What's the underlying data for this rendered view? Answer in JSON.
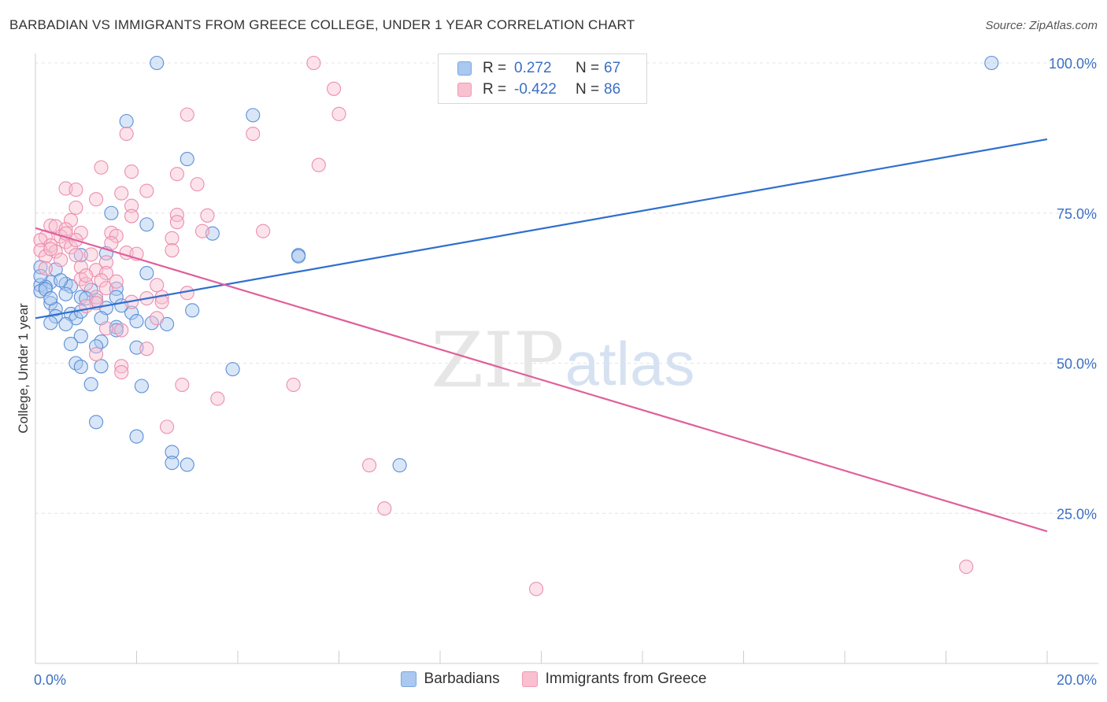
{
  "title": "BARBADIAN VS IMMIGRANTS FROM GREECE COLLEGE, UNDER 1 YEAR CORRELATION CHART",
  "source": "Source: ZipAtlas.com",
  "watermark": {
    "zip": "ZIP",
    "atlas": "atlas"
  },
  "legend_top": [
    {
      "r_label": "R =",
      "r_value": "0.272",
      "n_label": "N =",
      "n_value": "67",
      "color": "#aac8f0",
      "border": "#7aa6e0"
    },
    {
      "r_label": "R =",
      "r_value": "-0.422",
      "n_label": "N =",
      "n_value": "86",
      "color": "#f8c0d0",
      "border": "#ee9ab4"
    }
  ],
  "legend_bottom": [
    {
      "label": "Barbadians",
      "color": "#aac8f0",
      "border": "#7aa6e0"
    },
    {
      "label": "Immigrants from Greece",
      "color": "#f8c0d0",
      "border": "#ee9ab4"
    }
  ],
  "chart_data": {
    "type": "scatter",
    "title": "BARBADIAN VS IMMIGRANTS FROM GREECE COLLEGE, UNDER 1 YEAR CORRELATION CHART",
    "xlabel": "",
    "ylabel": "College, Under 1 year",
    "xlim": [
      0,
      20
    ],
    "ylim": [
      0,
      100
    ],
    "x_tick_labels": {
      "left": "0.0%",
      "right": "20.0%"
    },
    "y_ticks": [
      25,
      50,
      75,
      100
    ],
    "y_tick_labels": [
      "25.0%",
      "50.0%",
      "75.0%",
      "100.0%"
    ],
    "series": [
      {
        "name": "Barbadians",
        "color": "#5b8fd6",
        "fill": "#aac8f0",
        "trend": {
          "x": [
            0,
            20
          ],
          "y": [
            57.5,
            87.3
          ],
          "color": "#2f6fce"
        },
        "points": [
          [
            2.4,
            100
          ],
          [
            18.9,
            100
          ],
          [
            1.8,
            90.3
          ],
          [
            4.3,
            91.3
          ],
          [
            3.0,
            84.0
          ],
          [
            1.5,
            75.0
          ],
          [
            2.2,
            73.1
          ],
          [
            3.5,
            71.6
          ],
          [
            5.2,
            68.0
          ],
          [
            1.4,
            68.3
          ],
          [
            0.9,
            68.0
          ],
          [
            0.1,
            66.0
          ],
          [
            0.4,
            65.6
          ],
          [
            2.2,
            65.0
          ],
          [
            0.3,
            63.5
          ],
          [
            0.6,
            63.2
          ],
          [
            0.7,
            62.8
          ],
          [
            0.1,
            63.0
          ],
          [
            0.2,
            62.7
          ],
          [
            0.1,
            62.0
          ],
          [
            1.1,
            62.2
          ],
          [
            1.6,
            62.4
          ],
          [
            0.9,
            61.0
          ],
          [
            1.2,
            60.5
          ],
          [
            1.6,
            61.0
          ],
          [
            0.3,
            60.0
          ],
          [
            0.4,
            59.0
          ],
          [
            1.4,
            59.2
          ],
          [
            3.1,
            58.8
          ],
          [
            0.7,
            58.2
          ],
          [
            0.4,
            57.8
          ],
          [
            0.8,
            57.5
          ],
          [
            1.3,
            57.5
          ],
          [
            1.9,
            58.4
          ],
          [
            0.3,
            56.7
          ],
          [
            0.6,
            56.5
          ],
          [
            1.6,
            56.0
          ],
          [
            2.3,
            56.7
          ],
          [
            2.6,
            56.5
          ],
          [
            1.6,
            55.5
          ],
          [
            0.9,
            54.5
          ],
          [
            1.3,
            53.6
          ],
          [
            0.7,
            53.2
          ],
          [
            1.2,
            52.8
          ],
          [
            2.0,
            52.6
          ],
          [
            0.8,
            50.0
          ],
          [
            0.9,
            49.4
          ],
          [
            1.3,
            49.5
          ],
          [
            3.9,
            49.0
          ],
          [
            1.1,
            46.5
          ],
          [
            2.1,
            46.2
          ],
          [
            1.2,
            40.2
          ],
          [
            2.0,
            37.8
          ],
          [
            2.7,
            35.2
          ],
          [
            2.7,
            33.4
          ],
          [
            3.0,
            33.1
          ],
          [
            7.2,
            33.0
          ],
          [
            5.2,
            67.8
          ],
          [
            0.1,
            64.5
          ],
          [
            0.5,
            63.8
          ],
          [
            0.2,
            62.3
          ],
          [
            0.6,
            61.5
          ],
          [
            1.0,
            60.8
          ],
          [
            1.7,
            59.6
          ],
          [
            0.9,
            58.6
          ],
          [
            0.3,
            60.8
          ],
          [
            2.0,
            57.0
          ]
        ]
      },
      {
        "name": "Immigrants from Greece",
        "color": "#ec8db0",
        "fill": "#f8c0d0",
        "trend": {
          "x": [
            0,
            20
          ],
          "y": [
            72.5,
            22.0
          ],
          "color": "#e0609a"
        },
        "points": [
          [
            5.5,
            100
          ],
          [
            5.9,
            95.7
          ],
          [
            6.0,
            91.5
          ],
          [
            3.0,
            91.4
          ],
          [
            1.8,
            88.2
          ],
          [
            4.3,
            88.2
          ],
          [
            5.6,
            83.0
          ],
          [
            1.3,
            82.6
          ],
          [
            1.9,
            81.9
          ],
          [
            2.8,
            81.5
          ],
          [
            3.2,
            79.8
          ],
          [
            0.6,
            79.1
          ],
          [
            0.8,
            78.9
          ],
          [
            1.7,
            78.3
          ],
          [
            2.2,
            78.7
          ],
          [
            1.2,
            77.3
          ],
          [
            1.9,
            76.2
          ],
          [
            0.8,
            75.9
          ],
          [
            1.9,
            74.5
          ],
          [
            2.8,
            74.7
          ],
          [
            3.4,
            74.6
          ],
          [
            0.7,
            73.8
          ],
          [
            2.8,
            73.5
          ],
          [
            0.3,
            72.9
          ],
          [
            0.4,
            72.8
          ],
          [
            0.6,
            72.3
          ],
          [
            3.3,
            72.0
          ],
          [
            4.5,
            72.0
          ],
          [
            0.9,
            71.7
          ],
          [
            1.5,
            71.7
          ],
          [
            0.2,
            71.0
          ],
          [
            0.5,
            71.1
          ],
          [
            1.6,
            71.2
          ],
          [
            2.7,
            70.8
          ],
          [
            0.1,
            70.5
          ],
          [
            0.6,
            70.2
          ],
          [
            0.3,
            69.6
          ],
          [
            0.7,
            69.3
          ],
          [
            1.5,
            70.0
          ],
          [
            0.1,
            68.8
          ],
          [
            0.4,
            68.6
          ],
          [
            0.8,
            68.0
          ],
          [
            1.1,
            68.1
          ],
          [
            1.8,
            68.4
          ],
          [
            2.0,
            68.2
          ],
          [
            2.7,
            68.8
          ],
          [
            0.2,
            67.8
          ],
          [
            0.5,
            67.2
          ],
          [
            1.4,
            66.8
          ],
          [
            0.9,
            66.0
          ],
          [
            1.2,
            65.5
          ],
          [
            1.4,
            65.0
          ],
          [
            0.9,
            64.0
          ],
          [
            1.0,
            63.2
          ],
          [
            1.3,
            63.8
          ],
          [
            2.4,
            63.0
          ],
          [
            1.4,
            62.5
          ],
          [
            3.0,
            61.7
          ],
          [
            1.2,
            61.0
          ],
          [
            2.2,
            60.8
          ],
          [
            2.5,
            61.0
          ],
          [
            1.2,
            60.0
          ],
          [
            1.9,
            60.2
          ],
          [
            1.0,
            59.5
          ],
          [
            2.4,
            57.5
          ],
          [
            1.4,
            55.8
          ],
          [
            1.7,
            55.5
          ],
          [
            2.2,
            52.4
          ],
          [
            1.2,
            51.5
          ],
          [
            1.7,
            49.5
          ],
          [
            1.7,
            48.5
          ],
          [
            2.9,
            46.4
          ],
          [
            5.1,
            46.4
          ],
          [
            3.6,
            44.1
          ],
          [
            2.6,
            39.4
          ],
          [
            6.6,
            33.0
          ],
          [
            6.9,
            25.8
          ],
          [
            18.4,
            16.1
          ],
          [
            9.9,
            12.4
          ],
          [
            0.3,
            69.0
          ],
          [
            0.6,
            71.6
          ],
          [
            0.2,
            65.8
          ],
          [
            1.0,
            64.6
          ],
          [
            1.6,
            63.6
          ],
          [
            0.8,
            70.5
          ],
          [
            2.5,
            60.2
          ]
        ]
      }
    ]
  }
}
